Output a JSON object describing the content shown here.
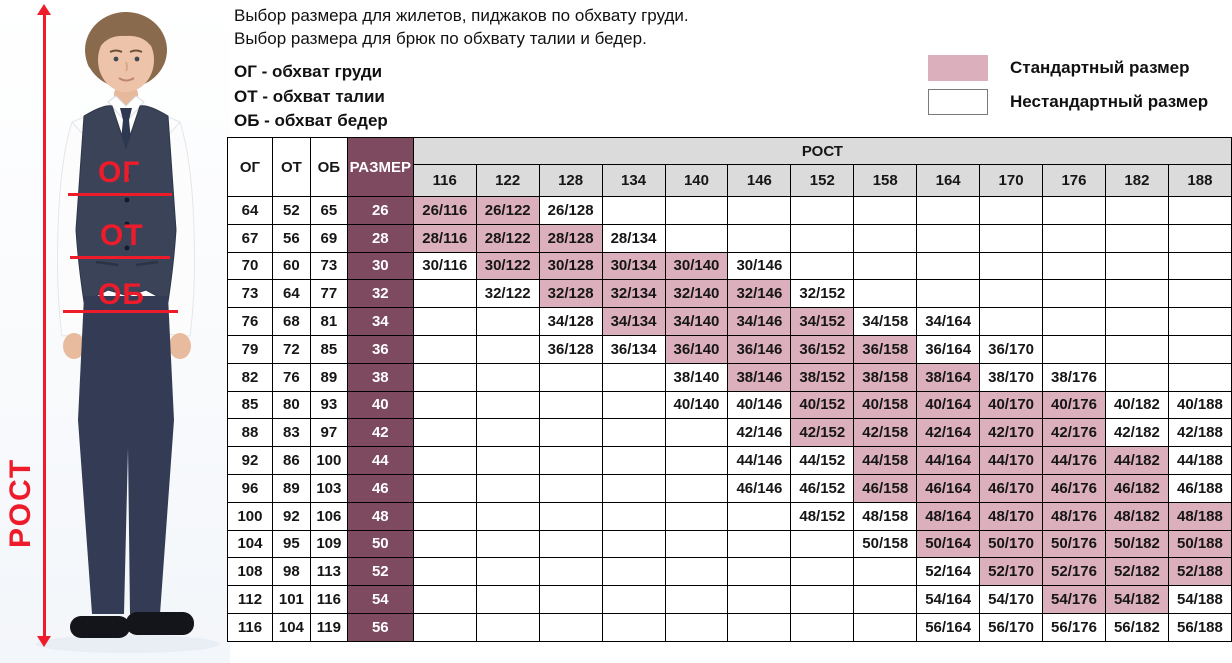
{
  "header": {
    "title_line1": "Выбор размера для жилетов, пиджаков по обхвату груди.",
    "title_line2": "Выбор размера для брюк по обхвату талии и бедер.",
    "abbreviations": [
      "ОГ - обхват груди",
      "ОТ - обхват талии",
      "ОБ - обхват бедер"
    ]
  },
  "legend": {
    "standard_label": "Стандартный размер",
    "nonstandard_label": "Нестандартный размер",
    "standard_color": "#dcafbd",
    "nonstandard_color": "#ffffff"
  },
  "photo": {
    "accent_color": "#ee1c2b",
    "annotations": {
      "chest": "ОГ",
      "waist": "ОТ",
      "hips": "ОБ",
      "height": "РОСТ"
    }
  },
  "chart_data": {
    "type": "table",
    "columns": {
      "og": "ОГ",
      "ot": "ОТ",
      "ob": "ОБ",
      "size": "РАЗМЕР",
      "rost": "РОСТ"
    },
    "heights": [
      116,
      122,
      128,
      134,
      140,
      146,
      152,
      158,
      164,
      170,
      176,
      182,
      188
    ],
    "colors": {
      "standard": "#dcafbd",
      "size_column": "#7d4a5f",
      "header_bg": "#dbdbdb"
    },
    "rows": [
      {
        "og": 64,
        "ot": 52,
        "ob": 65,
        "size": "26",
        "cells": [
          [
            "26/116",
            1
          ],
          [
            "26/122",
            1
          ],
          [
            "26/128",
            0
          ]
        ]
      },
      {
        "og": 67,
        "ot": 56,
        "ob": 69,
        "size": "28",
        "cells": [
          [
            "28/116",
            1
          ],
          [
            "28/122",
            1
          ],
          [
            "28/128",
            1
          ],
          [
            "28/134",
            0
          ]
        ]
      },
      {
        "og": 70,
        "ot": 60,
        "ob": 73,
        "size": "30",
        "cells": [
          [
            "30/116",
            0
          ],
          [
            "30/122",
            1
          ],
          [
            "30/128",
            1
          ],
          [
            "30/134",
            1
          ],
          [
            "30/140",
            1
          ],
          [
            "30/146",
            0
          ]
        ]
      },
      {
        "og": 73,
        "ot": 64,
        "ob": 77,
        "size": "32",
        "cells": [
          [
            "32/122",
            0
          ],
          [
            "32/128",
            1
          ],
          [
            "32/134",
            1
          ],
          [
            "32/140",
            1
          ],
          [
            "32/146",
            1
          ],
          [
            "32/152",
            0
          ]
        ]
      },
      {
        "og": 76,
        "ot": 68,
        "ob": 81,
        "size": "34",
        "cells": [
          [
            "34/128",
            0
          ],
          [
            "34/134",
            1
          ],
          [
            "34/140",
            1
          ],
          [
            "34/146",
            1
          ],
          [
            "34/152",
            1
          ],
          [
            "34/158",
            0
          ],
          [
            "34/164",
            0
          ]
        ]
      },
      {
        "og": 79,
        "ot": 72,
        "ob": 85,
        "size": "36",
        "cells": [
          [
            "36/128",
            0
          ],
          [
            "36/134",
            0
          ],
          [
            "36/140",
            1
          ],
          [
            "36/146",
            1
          ],
          [
            "36/152",
            1
          ],
          [
            "36/158",
            1
          ],
          [
            "36/164",
            0
          ],
          [
            "36/170",
            0
          ]
        ]
      },
      {
        "og": 82,
        "ot": 76,
        "ob": 89,
        "size": "38",
        "cells": [
          [
            "38/140",
            0
          ],
          [
            "38/146",
            1
          ],
          [
            "38/152",
            1
          ],
          [
            "38/158",
            1
          ],
          [
            "38/164",
            1
          ],
          [
            "38/170",
            0
          ],
          [
            "38/176",
            0
          ]
        ]
      },
      {
        "og": 85,
        "ot": 80,
        "ob": 93,
        "size": "40",
        "cells": [
          [
            "40/140",
            0
          ],
          [
            "40/146",
            0
          ],
          [
            "40/152",
            1
          ],
          [
            "40/158",
            1
          ],
          [
            "40/164",
            1
          ],
          [
            "40/170",
            1
          ],
          [
            "40/176",
            1
          ],
          [
            "40/182",
            0
          ],
          [
            "40/188",
            0
          ]
        ]
      },
      {
        "og": 88,
        "ot": 83,
        "ob": 97,
        "size": "42",
        "cells": [
          [
            "42/146",
            0
          ],
          [
            "42/152",
            1
          ],
          [
            "42/158",
            1
          ],
          [
            "42/164",
            1
          ],
          [
            "42/170",
            1
          ],
          [
            "42/176",
            1
          ],
          [
            "42/182",
            0
          ],
          [
            "42/188",
            0
          ]
        ]
      },
      {
        "og": 92,
        "ot": 86,
        "ob": 100,
        "size": "44",
        "cells": [
          [
            "44/146",
            0
          ],
          [
            "44/152",
            0
          ],
          [
            "44/158",
            1
          ],
          [
            "44/164",
            1
          ],
          [
            "44/170",
            1
          ],
          [
            "44/176",
            1
          ],
          [
            "44/182",
            1
          ],
          [
            "44/188",
            0
          ]
        ]
      },
      {
        "og": 96,
        "ot": 89,
        "ob": 103,
        "size": "46",
        "cells": [
          [
            "46/146",
            0
          ],
          [
            "46/152",
            0
          ],
          [
            "46/158",
            1
          ],
          [
            "46/164",
            1
          ],
          [
            "46/170",
            1
          ],
          [
            "46/176",
            1
          ],
          [
            "46/182",
            1
          ],
          [
            "46/188",
            0
          ]
        ]
      },
      {
        "og": 100,
        "ot": 92,
        "ob": 106,
        "size": "48",
        "cells": [
          [
            "48/152",
            0
          ],
          [
            "48/158",
            0
          ],
          [
            "48/164",
            1
          ],
          [
            "48/170",
            1
          ],
          [
            "48/176",
            1
          ],
          [
            "48/182",
            1
          ],
          [
            "48/188",
            1
          ]
        ]
      },
      {
        "og": 104,
        "ot": 95,
        "ob": 109,
        "size": "50",
        "cells": [
          [
            "50/158",
            0
          ],
          [
            "50/164",
            1
          ],
          [
            "50/170",
            1
          ],
          [
            "50/176",
            1
          ],
          [
            "50/182",
            1
          ],
          [
            "50/188",
            1
          ]
        ]
      },
      {
        "og": 108,
        "ot": 98,
        "ob": 113,
        "size": "52",
        "cells": [
          [
            "52/164",
            0
          ],
          [
            "52/170",
            1
          ],
          [
            "52/176",
            1
          ],
          [
            "52/182",
            1
          ],
          [
            "52/188",
            1
          ]
        ]
      },
      {
        "og": 112,
        "ot": 101,
        "ob": 116,
        "size": "54",
        "cells": [
          [
            "54/164",
            0
          ],
          [
            "54/170",
            0
          ],
          [
            "54/176",
            1
          ],
          [
            "54/182",
            1
          ],
          [
            "54/188",
            0
          ]
        ]
      },
      {
        "og": 116,
        "ot": 104,
        "ob": 119,
        "size": "56",
        "cells": [
          [
            "56/164",
            0
          ],
          [
            "56/170",
            0
          ],
          [
            "56/176",
            0
          ],
          [
            "56/182",
            0
          ],
          [
            "56/188",
            0
          ]
        ]
      }
    ]
  }
}
